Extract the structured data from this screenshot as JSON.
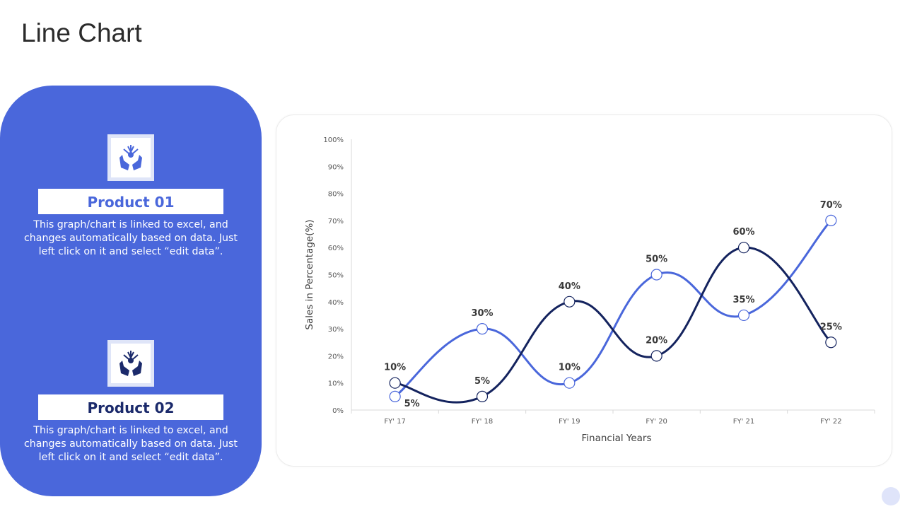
{
  "page": {
    "title": "Line Chart"
  },
  "products": [
    {
      "title": "Product 01",
      "description": "This graph/chart is linked to excel, and changes automatically based on data. Just left click on it and select “edit data”.",
      "icon": "hands-holding-plant-icon",
      "title_color": "#4a67db"
    },
    {
      "title": "Product 02",
      "description": "This graph/chart is linked to excel, and changes automatically based on data. Just left click on it and select “edit data”.",
      "icon": "hands-holding-plant-icon",
      "title_color": "#1b2a6b"
    }
  ],
  "colors": {
    "panel": "#4a67db",
    "series_light": "#4a67db",
    "series_dark": "#14235e"
  },
  "chart_data": {
    "type": "line",
    "categories": [
      "FY' 17",
      "FY' 18",
      "FY' 19",
      "FY' 20",
      "FY' 21",
      "FY' 22"
    ],
    "series": [
      {
        "values": [
          5,
          30,
          10,
          50,
          35,
          70
        ],
        "color": "#4a67db"
      },
      {
        "values": [
          10,
          5,
          40,
          20,
          60,
          25
        ],
        "color": "#14235e"
      }
    ],
    "data_labels": [
      "10%",
      "30%",
      "40%",
      "50%",
      "60%",
      "70%",
      "5%",
      "5%",
      "10%",
      "20%",
      "35%",
      "25%"
    ],
    "xlabel": "Financial Years",
    "ylabel": "Sales in Percentage(%)",
    "ylim": [
      0,
      100
    ],
    "yticks": [
      0,
      10,
      20,
      30,
      40,
      50,
      60,
      70,
      80,
      90,
      100
    ],
    "ytick_labels": [
      "0%",
      "10%",
      "20%",
      "30%",
      "40%",
      "50%",
      "60%",
      "70%",
      "80%",
      "90%",
      "100%"
    ],
    "smooth": true,
    "grid": false,
    "legend": "none"
  }
}
